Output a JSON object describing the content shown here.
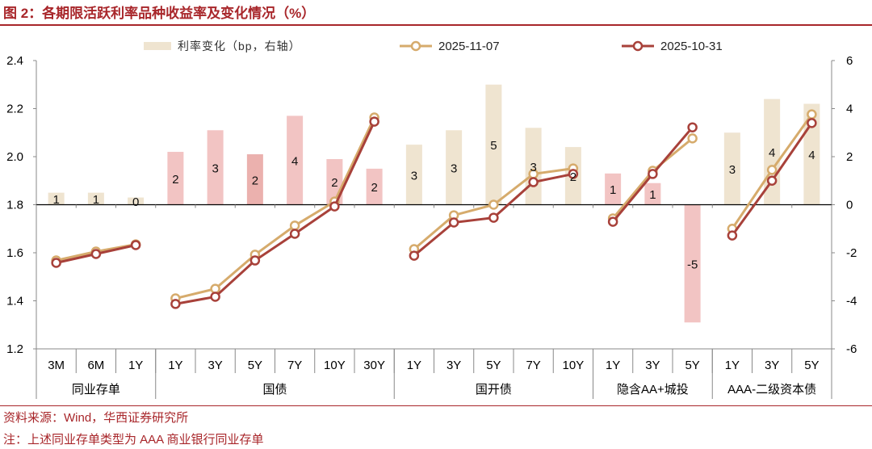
{
  "title": "图 2：各期限活跃利率品种收益率及变化情况（%）",
  "footer": {
    "source": "资料来源：Wind，华西证券研究所",
    "note": "注：上述同业存单类型为 AAA 商业银行同业存单"
  },
  "chart_data": {
    "type": "bar+line",
    "title": "",
    "grid": false,
    "legend_position": "top",
    "left_axis": {
      "range": [
        1.2,
        2.4
      ],
      "ticks": [
        "1.2",
        "1.4",
        "1.6",
        "1.8",
        "2.0",
        "2.2",
        "2.4"
      ]
    },
    "right_axis": {
      "range": [
        -6,
        6
      ],
      "ticks": [
        "-6",
        "-4",
        "-2",
        "0",
        "2",
        "4",
        "6"
      ]
    },
    "categories": [
      "3M",
      "6M",
      "1Y",
      "1Y",
      "3Y",
      "5Y",
      "7Y",
      "10Y",
      "30Y",
      "1Y",
      "3Y",
      "5Y",
      "7Y",
      "10Y",
      "1Y",
      "3Y",
      "5Y",
      "1Y",
      "3Y",
      "5Y"
    ],
    "groups": [
      {
        "label": "同业存单",
        "count": 3
      },
      {
        "label": "国债",
        "count": 6
      },
      {
        "label": "国开债",
        "count": 5
      },
      {
        "label": "隐含AA+城投",
        "count": 3
      },
      {
        "label": "AAA-二级资本债",
        "count": 3
      }
    ],
    "bars": {
      "name": "利率变化（bp，右轴）",
      "axis": "right",
      "values": [
        0.5,
        0.5,
        0.3,
        2.2,
        3.1,
        2.1,
        3.7,
        1.9,
        1.5,
        2.5,
        3.1,
        5.0,
        3.2,
        2.4,
        1.3,
        0.9,
        -4.9,
        3.0,
        4.4,
        4.2
      ],
      "labels": [
        "1",
        "1",
        "0",
        "2",
        "3",
        "2",
        "4",
        "2",
        "2",
        "3",
        "3",
        "5",
        "3",
        "2",
        "1",
        "1",
        "-5",
        "3",
        "4",
        "4"
      ],
      "colors": [
        "#efe4d0",
        "#efe4d0",
        "#efe4d0",
        "#f2c4c3",
        "#f2c4c3",
        "#ebb1ae",
        "#f2c4c3",
        "#f2c4c3",
        "#f2c4c3",
        "#efe4d0",
        "#efe4d0",
        "#efe4d0",
        "#efe4d0",
        "#efe4d0",
        "#f2c4c3",
        "#f2c4c3",
        "#f2c4c3",
        "#efe4d0",
        "#efe4d0",
        "#efe4d0"
      ]
    },
    "series": [
      {
        "name": "2025-11-07",
        "axis": "left",
        "color": "#d6ab6c",
        "values": [
          1.568,
          1.605,
          1.635,
          1.41,
          1.45,
          1.592,
          1.713,
          1.813,
          2.163,
          1.615,
          1.756,
          1.8,
          1.928,
          1.951,
          1.743,
          1.941,
          2.076,
          1.7,
          1.945,
          2.176
        ]
      },
      {
        "name": "2025-10-31",
        "axis": "left",
        "color": "#a8413a",
        "values": [
          1.558,
          1.595,
          1.632,
          1.387,
          1.417,
          1.568,
          1.679,
          1.793,
          2.146,
          1.588,
          1.726,
          1.746,
          1.894,
          1.928,
          1.729,
          1.928,
          2.122,
          1.672,
          1.9,
          2.14
        ]
      }
    ]
  }
}
